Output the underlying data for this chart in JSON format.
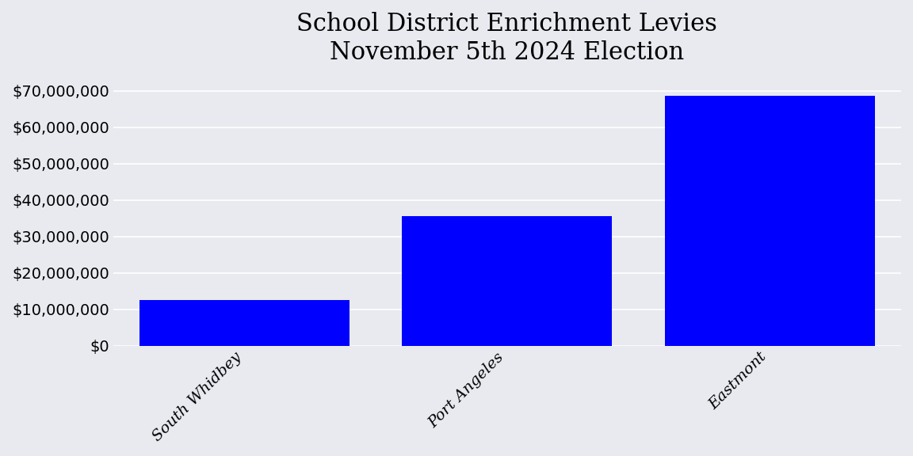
{
  "title": "School District Enrichment Levies\nNovember 5th 2024 Election",
  "categories": [
    "South Whidbey",
    "Port Angeles",
    "Eastmont"
  ],
  "values": [
    12500000,
    35500000,
    68500000
  ],
  "bar_color": "#0000ff",
  "background_color": "#e8eaf0",
  "ylim": [
    0,
    75000000
  ],
  "yticks": [
    0,
    10000000,
    20000000,
    30000000,
    40000000,
    50000000,
    60000000,
    70000000
  ],
  "title_fontsize": 22,
  "tick_label_fontsize": 14,
  "bar_width": 0.8,
  "grid_color": "#ffffff",
  "grid_linewidth": 1.2
}
